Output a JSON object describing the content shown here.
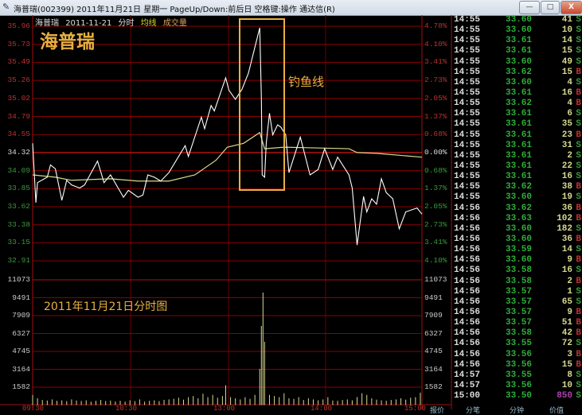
{
  "window": {
    "title": "海普瑞(002399) 2011年11月21日 星期一 PageUp/Down:前后日 空格键:操作 通达信(R)",
    "controls": {
      "minimize": "—",
      "maximize": "□",
      "close": "X"
    }
  },
  "chart_header": {
    "name": "海普瑞",
    "date": "2011-11-21",
    "mode": "分时",
    "avg_label": "均线",
    "vol_label": "成交量"
  },
  "annotations": {
    "stock_name": "海普瑞",
    "hook_label": "钓鱼线",
    "chart_caption": "2011年11月21日分时图"
  },
  "colors": {
    "up": "#c03030",
    "down": "#3a9a3a",
    "price_line": "#ffffff",
    "avg_line": "#d8d890",
    "grid": "#8b0000",
    "highlight_box": "#e8b040",
    "volume": "#d8d890"
  },
  "chart_data": {
    "type": "line",
    "prev_close": 34.32,
    "price_ticks": [
      "35.96",
      "35.73",
      "35.49",
      "35.26",
      "35.02",
      "34.79",
      "34.55",
      "34.32",
      "34.09",
      "33.85",
      "33.62",
      "33.38",
      "33.15",
      "32.91"
    ],
    "percent_ticks": [
      "4.78%",
      "4.10%",
      "3.41%",
      "2.73%",
      "2.05%",
      "1.37%",
      "0.68%",
      "0.00%",
      "0.68%",
      "1.37%",
      "2.05%",
      "2.73%",
      "3.41%",
      "4.10%"
    ],
    "volume_ticks": [
      "11073",
      "9491",
      "7909",
      "6327",
      "4745",
      "3164",
      "1582"
    ],
    "ylim_price": [
      32.91,
      35.96
    ],
    "ylim_volume": [
      0,
      11073
    ],
    "time_labels": [
      "09:30",
      "10:30",
      "13:00",
      "14:00",
      "15:00"
    ],
    "price_series": [
      [
        0,
        34.44
      ],
      [
        2,
        33.67
      ],
      [
        3,
        33.93
      ],
      [
        9,
        34.0
      ],
      [
        11,
        34.16
      ],
      [
        14,
        34.11
      ],
      [
        18,
        33.7
      ],
      [
        21,
        33.96
      ],
      [
        24,
        33.9
      ],
      [
        29,
        33.86
      ],
      [
        32,
        33.9
      ],
      [
        40,
        34.21
      ],
      [
        44,
        33.93
      ],
      [
        48,
        34.03
      ],
      [
        56,
        33.74
      ],
      [
        59,
        33.83
      ],
      [
        65,
        33.74
      ],
      [
        68,
        33.77
      ],
      [
        71,
        34.03
      ],
      [
        75,
        34.0
      ],
      [
        79,
        33.95
      ],
      [
        84,
        34.06
      ],
      [
        94,
        34.41
      ],
      [
        96,
        34.27
      ],
      [
        104,
        34.78
      ],
      [
        106,
        34.63
      ],
      [
        110,
        34.93
      ],
      [
        112,
        34.86
      ],
      [
        119,
        35.29
      ],
      [
        121,
        35.13
      ],
      [
        125,
        35.01
      ],
      [
        129,
        35.14
      ],
      [
        133,
        35.35
      ],
      [
        140,
        35.94
      ],
      [
        141,
        35.03
      ],
      [
        141.5,
        34.03
      ],
      [
        143,
        34.0
      ],
      [
        144,
        34.44
      ],
      [
        146,
        34.83
      ],
      [
        148,
        34.55
      ],
      [
        151,
        34.68
      ],
      [
        153,
        34.65
      ],
      [
        156,
        34.55
      ],
      [
        158,
        34.06
      ],
      [
        165,
        34.52
      ],
      [
        171,
        34.03
      ],
      [
        176,
        34.1
      ],
      [
        180,
        34.37
      ],
      [
        185,
        34.1
      ],
      [
        188,
        34.26
      ],
      [
        195,
        34.03
      ],
      [
        197,
        33.86
      ],
      [
        200,
        33.12
      ],
      [
        204,
        33.75
      ],
      [
        206,
        33.55
      ],
      [
        209,
        33.72
      ],
      [
        212,
        33.65
      ],
      [
        215,
        33.98
      ],
      [
        218,
        33.8
      ],
      [
        222,
        33.72
      ],
      [
        226,
        33.33
      ],
      [
        230,
        33.55
      ],
      [
        237,
        33.6
      ],
      [
        240,
        33.52
      ]
    ],
    "avg_series": [
      [
        0,
        34.03
      ],
      [
        14,
        34.0
      ],
      [
        24,
        33.96
      ],
      [
        48,
        33.98
      ],
      [
        65,
        33.95
      ],
      [
        84,
        33.95
      ],
      [
        100,
        34.03
      ],
      [
        113,
        34.22
      ],
      [
        120,
        34.39
      ],
      [
        130,
        34.44
      ],
      [
        140,
        34.58
      ],
      [
        143,
        34.37
      ],
      [
        155,
        34.39
      ],
      [
        195,
        34.37
      ],
      [
        200,
        34.32
      ],
      [
        212,
        34.31
      ],
      [
        240,
        34.26
      ]
    ],
    "volume_series": [
      [
        0,
        900
      ],
      [
        3,
        600
      ],
      [
        6,
        450
      ],
      [
        9,
        400
      ],
      [
        12,
        500
      ],
      [
        15,
        380
      ],
      [
        18,
        420
      ],
      [
        21,
        350
      ],
      [
        24,
        500
      ],
      [
        27,
        400
      ],
      [
        30,
        360
      ],
      [
        33,
        420
      ],
      [
        36,
        300
      ],
      [
        39,
        380
      ],
      [
        42,
        450
      ],
      [
        45,
        350
      ],
      [
        48,
        400
      ],
      [
        51,
        320
      ],
      [
        54,
        380
      ],
      [
        57,
        300
      ],
      [
        60,
        420
      ],
      [
        63,
        350
      ],
      [
        66,
        500
      ],
      [
        69,
        300
      ],
      [
        72,
        380
      ],
      [
        75,
        420
      ],
      [
        78,
        350
      ],
      [
        81,
        460
      ],
      [
        84,
        500
      ],
      [
        87,
        560
      ],
      [
        90,
        650
      ],
      [
        93,
        480
      ],
      [
        96,
        700
      ],
      [
        99,
        800
      ],
      [
        102,
        600
      ],
      [
        105,
        1000
      ],
      [
        108,
        700
      ],
      [
        111,
        900
      ],
      [
        114,
        650
      ],
      [
        117,
        800
      ],
      [
        119,
        1750
      ],
      [
        122,
        700
      ],
      [
        125,
        600
      ],
      [
        128,
        500
      ],
      [
        131,
        700
      ],
      [
        134,
        550
      ],
      [
        137,
        900
      ],
      [
        140,
        3200
      ],
      [
        141,
        7000
      ],
      [
        142,
        9950
      ],
      [
        143,
        5600
      ],
      [
        146,
        900
      ],
      [
        149,
        800
      ],
      [
        152,
        700
      ],
      [
        155,
        1050
      ],
      [
        158,
        600
      ],
      [
        161,
        550
      ],
      [
        164,
        700
      ],
      [
        167,
        450
      ],
      [
        170,
        600
      ],
      [
        173,
        500
      ],
      [
        176,
        420
      ],
      [
        179,
        500
      ],
      [
        182,
        700
      ],
      [
        185,
        400
      ],
      [
        188,
        380
      ],
      [
        191,
        450
      ],
      [
        194,
        500
      ],
      [
        197,
        420
      ],
      [
        200,
        700
      ],
      [
        203,
        1050
      ],
      [
        206,
        900
      ],
      [
        209,
        600
      ],
      [
        212,
        480
      ],
      [
        215,
        420
      ],
      [
        218,
        380
      ],
      [
        221,
        450
      ],
      [
        224,
        500
      ],
      [
        227,
        600
      ],
      [
        230,
        480
      ],
      [
        233,
        650
      ],
      [
        236,
        700
      ],
      [
        239,
        1100
      ]
    ]
  },
  "trades": [
    {
      "time": "14:55",
      "price": "33.60",
      "vol": "41",
      "side": "S"
    },
    {
      "time": "14:55",
      "price": "33.60",
      "vol": "10",
      "side": "S"
    },
    {
      "time": "14:55",
      "price": "33.61",
      "vol": "14",
      "side": "S"
    },
    {
      "time": "14:55",
      "price": "33.61",
      "vol": "15",
      "side": "S"
    },
    {
      "time": "14:55",
      "price": "33.60",
      "vol": "49",
      "side": "S"
    },
    {
      "time": "14:55",
      "price": "33.62",
      "vol": "15",
      "side": "B"
    },
    {
      "time": "14:55",
      "price": "33.60",
      "vol": "4",
      "side": "S"
    },
    {
      "time": "14:55",
      "price": "33.61",
      "vol": "16",
      "side": "B"
    },
    {
      "time": "14:55",
      "price": "33.62",
      "vol": "4",
      "side": "B"
    },
    {
      "time": "14:55",
      "price": "33.61",
      "vol": "6",
      "side": "S"
    },
    {
      "time": "14:55",
      "price": "33.61",
      "vol": "35",
      "side": "S"
    },
    {
      "time": "14:55",
      "price": "33.61",
      "vol": "23",
      "side": "B"
    },
    {
      "time": "14:55",
      "price": "33.61",
      "vol": "31",
      "side": "S"
    },
    {
      "time": "14:55",
      "price": "33.61",
      "vol": "2",
      "side": "S"
    },
    {
      "time": "14:55",
      "price": "33.61",
      "vol": "22",
      "side": "S"
    },
    {
      "time": "14:55",
      "price": "33.61",
      "vol": "16",
      "side": "S"
    },
    {
      "time": "14:55",
      "price": "33.62",
      "vol": "38",
      "side": "B"
    },
    {
      "time": "14:55",
      "price": "33.60",
      "vol": "19",
      "side": "S"
    },
    {
      "time": "14:56",
      "price": "33.62",
      "vol": "36",
      "side": "B"
    },
    {
      "time": "14:56",
      "price": "33.63",
      "vol": "102",
      "side": "B"
    },
    {
      "time": "14:56",
      "price": "33.60",
      "vol": "182",
      "side": "S"
    },
    {
      "time": "14:56",
      "price": "33.60",
      "vol": "36",
      "side": "B"
    },
    {
      "time": "14:56",
      "price": "33.59",
      "vol": "14",
      "side": "S"
    },
    {
      "time": "14:56",
      "price": "33.60",
      "vol": "9",
      "side": "B"
    },
    {
      "time": "14:56",
      "price": "33.58",
      "vol": "16",
      "side": "S"
    },
    {
      "time": "14:56",
      "price": "33.58",
      "vol": "2",
      "side": "B"
    },
    {
      "time": "14:56",
      "price": "33.57",
      "vol": "1",
      "side": "S"
    },
    {
      "time": "14:56",
      "price": "33.57",
      "vol": "65",
      "side": "S"
    },
    {
      "time": "14:56",
      "price": "33.57",
      "vol": "9",
      "side": "B"
    },
    {
      "time": "14:56",
      "price": "33.57",
      "vol": "51",
      "side": "B"
    },
    {
      "time": "14:56",
      "price": "33.58",
      "vol": "42",
      "side": "B"
    },
    {
      "time": "14:56",
      "price": "33.55",
      "vol": "72",
      "side": "S"
    },
    {
      "time": "14:56",
      "price": "33.56",
      "vol": "3",
      "side": "B"
    },
    {
      "time": "14:56",
      "price": "33.56",
      "vol": "15",
      "side": "B"
    },
    {
      "time": "14:57",
      "price": "33.55",
      "vol": "8",
      "side": "S"
    },
    {
      "time": "14:57",
      "price": "33.56",
      "vol": "10",
      "side": "S"
    },
    {
      "time": "15:00",
      "price": "33.50",
      "vol": "850",
      "side": "S",
      "highlight": "#b040b0"
    }
  ],
  "bottom_tabs": [
    "报价",
    "分笔",
    "分钟",
    "价值"
  ]
}
